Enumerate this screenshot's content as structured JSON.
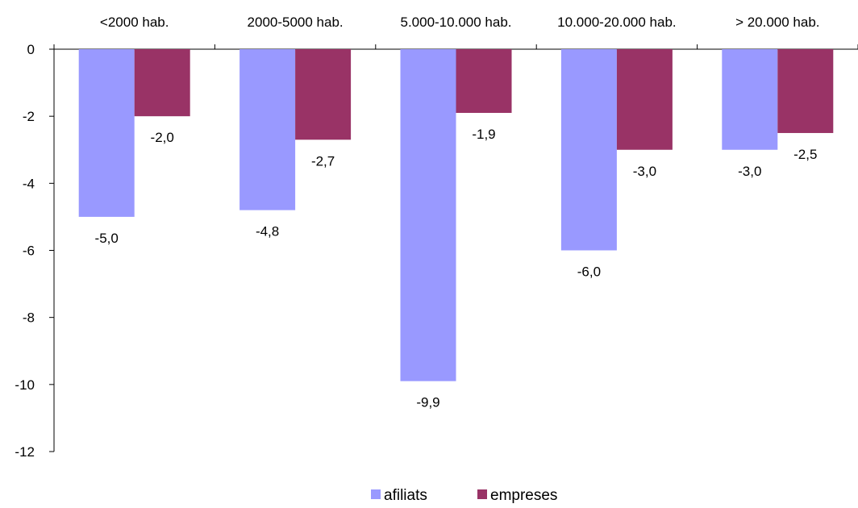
{
  "chart_data": {
    "type": "bar",
    "categories": [
      "<2000 hab.",
      "2000-5000 hab.",
      "5.000-10.000 hab.",
      "10.000-20.000 hab.",
      "> 20.000 hab."
    ],
    "series": [
      {
        "name": "afiliats",
        "color": "#9999ff",
        "values": [
          -5.0,
          -4.8,
          -9.9,
          -6.0,
          -3.0
        ],
        "labels": [
          "-5,0",
          "-4,8",
          "-9,9",
          "-6,0",
          "-3,0"
        ]
      },
      {
        "name": "empreses",
        "color": "#993366",
        "values": [
          -2.0,
          -2.7,
          -1.9,
          -3.0,
          -2.5
        ],
        "labels": [
          "-2,0",
          "-2,7",
          "-1,9",
          "-3,0",
          "-2,5"
        ]
      }
    ],
    "ylim": [
      -12,
      0
    ],
    "yticks": [
      0,
      -2,
      -4,
      -6,
      -8,
      -10,
      -12
    ],
    "ytick_labels": [
      "0",
      "-2",
      "-4",
      "-6",
      "-8",
      "-10",
      "-12"
    ],
    "category_axis_position": "top",
    "legend_position": "bottom",
    "grid": false
  }
}
